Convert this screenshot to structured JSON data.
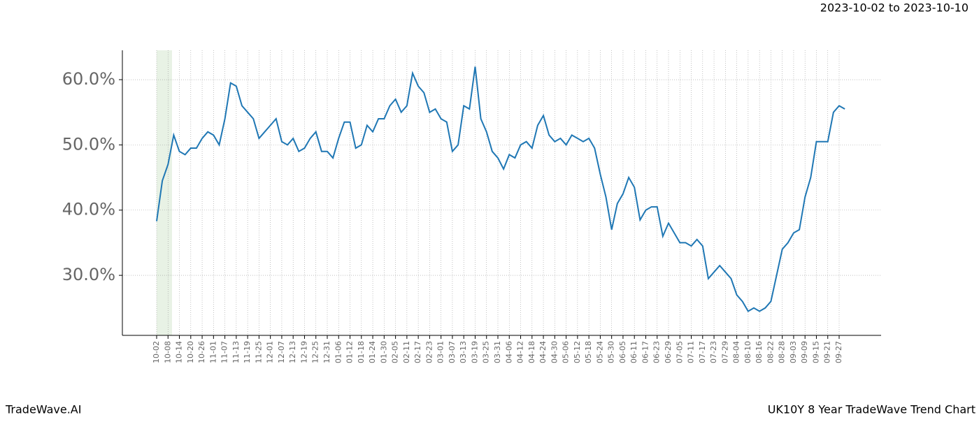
{
  "chart_data": {
    "type": "line",
    "title": "UK10Y 8 Year TradeWave Trend Chart",
    "subtitle": "2023-10-02 to 2023-10-10",
    "brand": "TradeWave.AI",
    "categories": [
      "10-02",
      null,
      "10-08",
      null,
      "10-14",
      null,
      "10-20",
      null,
      "10-26",
      null,
      "11-01",
      null,
      "11-07",
      null,
      "11-13",
      null,
      "11-19",
      null,
      "11-25",
      null,
      "12-01",
      null,
      "12-07",
      null,
      "12-13",
      null,
      "12-19",
      null,
      "12-25",
      null,
      "12-31",
      null,
      "01-06",
      null,
      "01-12",
      null,
      "01-18",
      null,
      "01-24",
      null,
      "01-30",
      null,
      "02-05",
      null,
      "02-11",
      null,
      "02-17",
      null,
      "02-23",
      null,
      "03-01",
      null,
      "03-07",
      null,
      "03-13",
      null,
      "03-19",
      null,
      "03-25",
      null,
      "03-31",
      null,
      "04-06",
      null,
      "04-12",
      null,
      "04-18",
      null,
      "04-24",
      null,
      "04-30",
      null,
      "05-06",
      null,
      "05-12",
      null,
      "05-18",
      null,
      "05-24",
      null,
      "05-30",
      null,
      "06-05",
      null,
      "06-11",
      null,
      "06-17",
      null,
      "06-23",
      null,
      "06-29",
      null,
      "07-05",
      null,
      "07-11",
      null,
      "07-17",
      null,
      "07-23",
      null,
      "07-29",
      null,
      "08-04",
      null,
      "08-10",
      null,
      "08-16",
      null,
      "08-22",
      null,
      "08-28",
      null,
      "09-03",
      null,
      "09-09",
      null,
      "09-15",
      null,
      "09-21",
      null,
      "09-27",
      null
    ],
    "series": [
      {
        "color": "#1f77b4",
        "values": [
          38.3,
          44.5,
          47,
          51.5,
          49,
          48.5,
          49.5,
          49.5,
          51,
          52,
          51.5,
          50,
          54,
          59.5,
          59,
          56,
          55,
          54,
          51,
          52,
          53,
          54,
          50.5,
          50,
          51,
          49,
          49.5,
          51,
          52,
          49,
          49,
          48,
          51,
          53.5,
          53.5,
          49.5,
          50,
          53,
          52,
          54,
          54,
          56,
          57,
          55,
          56,
          61,
          59,
          58,
          55,
          55.5,
          54,
          53.5,
          49,
          50,
          56,
          55.5,
          62,
          54,
          52,
          49,
          48,
          46.3,
          48.5,
          48,
          50,
          50.5,
          49.5,
          53,
          54.5,
          51.5,
          50.5,
          51,
          50,
          51.5,
          51,
          50.5,
          51,
          49.5,
          45.5,
          42,
          37,
          41,
          42.5,
          45,
          43.5,
          38.5,
          40,
          40.5,
          40.5,
          36,
          38,
          36.5,
          35,
          35,
          34.5,
          35.5,
          34.5,
          29.5,
          30.5,
          31.5,
          30.5,
          29.5,
          27,
          26,
          24.5,
          25,
          24.5,
          25,
          26,
          30,
          34,
          35,
          36.5,
          37,
          42,
          45,
          50.5,
          50.5,
          50.5,
          55,
          56,
          55.5
        ]
      }
    ],
    "ylim": [
      20.8,
      64.5
    ],
    "yticks": [
      {
        "value": 30,
        "label": "30.0%"
      },
      {
        "value": 40,
        "label": "40.0%"
      },
      {
        "value": 50,
        "label": "50.0%"
      },
      {
        "value": 60,
        "label": "60.0%"
      }
    ],
    "grid": true
  }
}
